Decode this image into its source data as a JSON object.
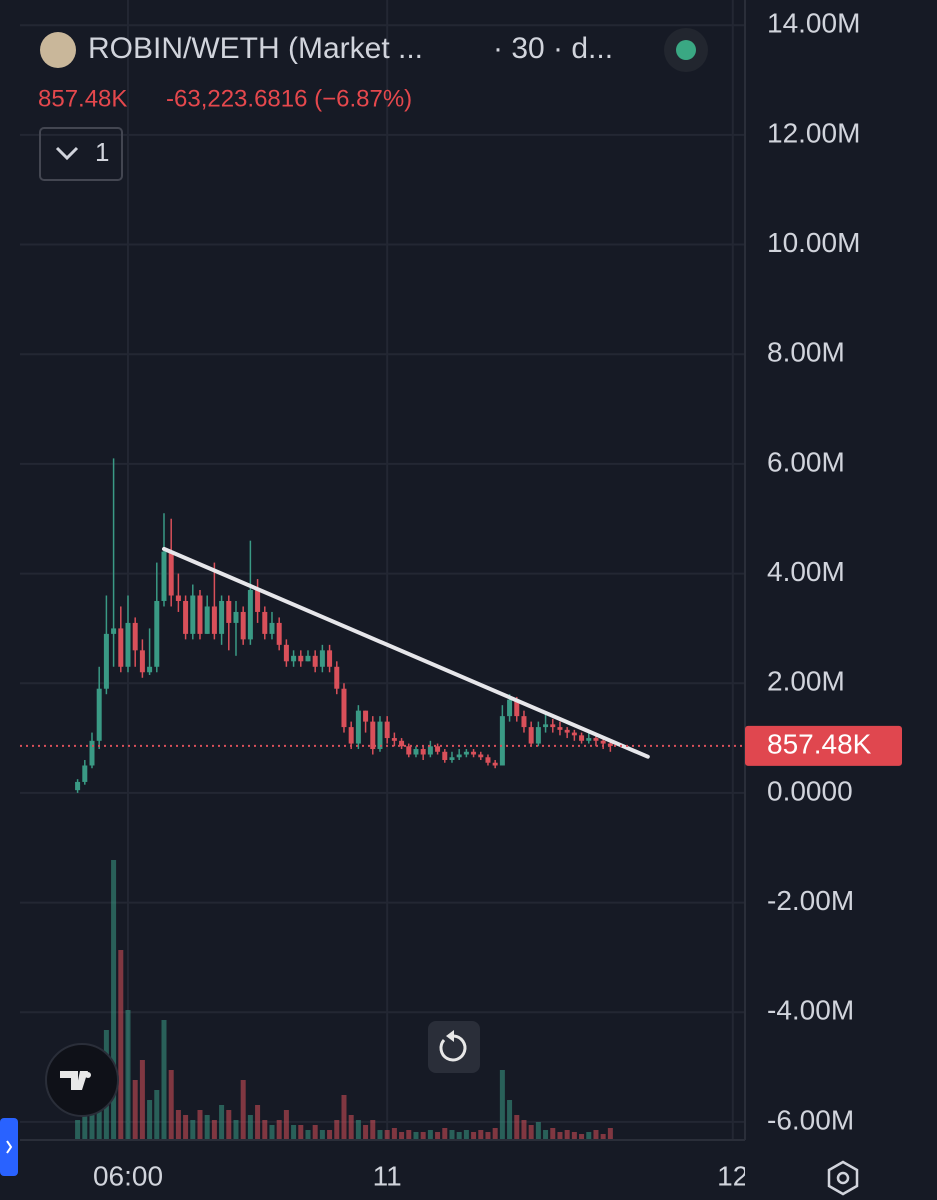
{
  "header": {
    "title": "ROBIN/WETH (Market ...",
    "interval": "· 30 · d...",
    "change": "-63,223.6816 (−6.87%)",
    "indicator_count": "1"
  },
  "chart_data": {
    "type": "candlestick",
    "x": [
      2.5,
      3,
      3.5,
      4,
      4.5,
      5,
      5.5,
      6,
      6.5,
      7,
      7.5,
      8,
      8.5,
      9,
      9.5,
      10,
      10.5,
      11,
      11.5,
      12,
      12.5,
      13,
      13.5,
      14,
      14.5,
      15,
      15.5,
      16,
      16.5,
      17,
      17.5,
      18,
      18.5,
      19,
      19.5,
      20,
      20.5,
      21,
      21.5,
      22,
      22.5,
      23,
      23.5,
      24,
      24.5,
      25,
      25.5,
      26,
      26.5,
      27,
      27.5,
      28,
      28.5,
      29,
      29.5,
      30,
      30.5,
      31,
      31.5,
      32,
      32.5,
      33,
      33.5,
      34,
      34.5,
      35,
      35.5,
      36,
      36.5,
      37,
      37.5,
      38,
      38.5,
      39,
      39.5
    ],
    "open": [
      0.05,
      0.2,
      0.5,
      0.95,
      1.9,
      2.9,
      3.0,
      2.3,
      3.1,
      2.6,
      2.2,
      2.3,
      3.5,
      4.4,
      3.6,
      3.5,
      2.9,
      3.6,
      2.9,
      3.4,
      2.9,
      3.5,
      3.1,
      3.3,
      2.8,
      3.7,
      3.3,
      2.9,
      3.1,
      2.7,
      2.4,
      2.5,
      2.4,
      2.5,
      2.3,
      2.6,
      2.3,
      1.9,
      1.2,
      0.9,
      1.5,
      1.3,
      0.8,
      1.3,
      1.0,
      0.95,
      0.85,
      0.7,
      0.8,
      0.7,
      0.85,
      0.75,
      0.6,
      0.65,
      0.7,
      0.75,
      0.7,
      0.65,
      0.55,
      0.5,
      1.4,
      1.7,
      1.4,
      1.2,
      0.9,
      1.2,
      1.25,
      1.2,
      1.15,
      1.1,
      1.05,
      0.95,
      1.0,
      0.95,
      0.9
    ],
    "high": [
      0.25,
      0.6,
      1.1,
      2.3,
      3.6,
      6.1,
      3.4,
      3.6,
      3.2,
      2.8,
      3.0,
      4.2,
      5.1,
      5.0,
      4.0,
      3.6,
      3.8,
      3.7,
      3.6,
      4.2,
      3.6,
      3.6,
      3.5,
      3.4,
      4.6,
      3.9,
      3.4,
      3.3,
      3.2,
      2.8,
      2.6,
      2.6,
      2.6,
      2.6,
      2.7,
      2.7,
      2.4,
      2.0,
      1.3,
      1.6,
      1.5,
      1.4,
      1.4,
      1.4,
      1.1,
      1.0,
      0.9,
      0.85,
      0.85,
      0.95,
      0.9,
      0.8,
      0.75,
      0.8,
      0.8,
      0.8,
      0.75,
      0.7,
      0.6,
      1.6,
      1.8,
      1.75,
      1.5,
      1.3,
      1.3,
      1.45,
      1.35,
      1.3,
      1.2,
      1.15,
      1.1,
      1.1,
      1.05,
      1.0,
      0.95
    ],
    "low": [
      0.0,
      0.15,
      0.45,
      0.8,
      1.8,
      2.3,
      2.2,
      2.2,
      2.3,
      2.1,
      2.15,
      2.2,
      3.4,
      3.4,
      3.3,
      2.8,
      2.8,
      2.8,
      2.9,
      2.8,
      2.7,
      2.6,
      2.5,
      2.7,
      2.7,
      3.1,
      2.8,
      2.8,
      2.6,
      2.3,
      2.3,
      2.3,
      2.4,
      2.2,
      2.2,
      2.2,
      1.8,
      1.1,
      0.8,
      0.8,
      1.1,
      0.7,
      0.75,
      0.9,
      0.85,
      0.8,
      0.65,
      0.65,
      0.6,
      0.65,
      0.7,
      0.55,
      0.55,
      0.6,
      0.65,
      0.65,
      0.6,
      0.5,
      0.45,
      0.5,
      1.3,
      1.3,
      1.1,
      0.85,
      0.85,
      1.1,
      1.1,
      1.05,
      1.0,
      0.95,
      0.9,
      0.9,
      0.85,
      0.8,
      0.75
    ],
    "close": [
      0.2,
      0.5,
      0.95,
      1.9,
      2.9,
      3.0,
      2.3,
      3.1,
      2.6,
      2.2,
      2.3,
      3.5,
      4.4,
      3.6,
      3.5,
      2.9,
      3.6,
      2.9,
      3.4,
      2.9,
      3.5,
      3.1,
      3.3,
      2.8,
      3.7,
      3.3,
      2.9,
      3.1,
      2.7,
      2.4,
      2.5,
      2.4,
      2.5,
      2.3,
      2.6,
      2.3,
      1.9,
      1.2,
      0.9,
      1.5,
      1.3,
      0.8,
      1.3,
      1.0,
      0.95,
      0.85,
      0.7,
      0.8,
      0.7,
      0.85,
      0.75,
      0.6,
      0.65,
      0.7,
      0.75,
      0.7,
      0.65,
      0.55,
      0.5,
      1.4,
      1.7,
      1.4,
      1.2,
      0.9,
      1.2,
      1.25,
      1.2,
      1.15,
      1.1,
      1.05,
      0.95,
      1.0,
      0.95,
      0.9,
      0.85748
    ],
    "volume": [
      20,
      25,
      40,
      70,
      110,
      280,
      190,
      130,
      60,
      80,
      40,
      50,
      120,
      70,
      30,
      25,
      20,
      30,
      25,
      20,
      35,
      30,
      20,
      60,
      25,
      35,
      20,
      15,
      20,
      30,
      15,
      15,
      10,
      15,
      10,
      10,
      20,
      45,
      25,
      20,
      15,
      20,
      10,
      10,
      12,
      8,
      10,
      8,
      8,
      10,
      8,
      12,
      10,
      8,
      10,
      8,
      10,
      8,
      12,
      70,
      40,
      25,
      20,
      15,
      18,
      10,
      12,
      8,
      10,
      8,
      6,
      8,
      10,
      6,
      12
    ],
    "up_color": "#3a9a85",
    "down_color": "#d9505a",
    "xlim": [
      -1.5,
      48.85
    ],
    "xticks": [
      {
        "value": 6,
        "label": "06:00"
      },
      {
        "value": 24,
        "label": "11"
      },
      {
        "value": 48,
        "label": "12"
      }
    ],
    "ylim": [
      -6.33,
      14.46
    ],
    "yticks": [
      {
        "value": 14,
        "label": "14.00M"
      },
      {
        "value": 12,
        "label": "12.00M"
      },
      {
        "value": 10,
        "label": "10.00M"
      },
      {
        "value": 8,
        "label": "8.00M"
      },
      {
        "value": 6,
        "label": "6.00M"
      },
      {
        "value": 4,
        "label": "4.00M"
      },
      {
        "value": 2,
        "label": "2.00M"
      },
      {
        "value": 0,
        "label": "0.0000"
      },
      {
        "value": -2,
        "label": "-2.00M"
      },
      {
        "value": -4,
        "label": "-4.00M"
      },
      {
        "value": -6,
        "label": "-6.00M"
      }
    ],
    "grid": true,
    "last_price": {
      "value": 0.85748,
      "label": "857.48K"
    },
    "trendline": {
      "x": [
        8.5,
        42.1
      ],
      "y": [
        4.45,
        0.66
      ]
    }
  }
}
